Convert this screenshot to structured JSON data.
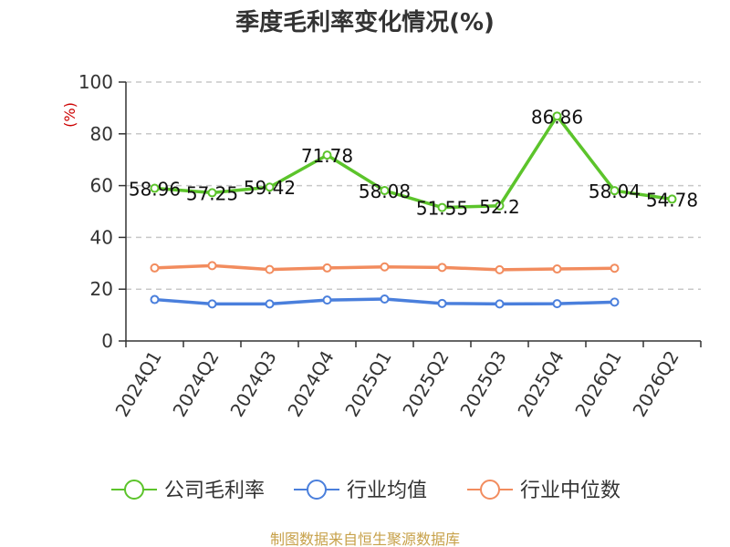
{
  "chart_data": {
    "type": "line",
    "title": "季度毛利率变化情况(%)",
    "ylabel": "(%)",
    "ylim": [
      0,
      100
    ],
    "yticks": [
      0,
      20,
      40,
      60,
      80,
      100
    ],
    "grid": true,
    "legend_position": "bottom",
    "categories": [
      "2024Q1",
      "2024Q2",
      "2024Q3",
      "2024Q4",
      "2025Q1",
      "2025Q2",
      "2025Q3",
      "2025Q4",
      "2026Q1",
      "2026Q2"
    ],
    "series": [
      {
        "name": "公司毛利率",
        "color": "#5cc42b",
        "values": [
          58.96,
          57.25,
          59.42,
          71.78,
          58.08,
          51.55,
          52.2,
          86.86,
          58.04,
          54.78
        ],
        "labels": [
          "58.96",
          "57.25",
          "59.42",
          "71.78",
          "58.08",
          "51.55",
          "52.2",
          "86.86",
          "58.04",
          "54.78"
        ]
      },
      {
        "name": "行业均值",
        "color": "#4a7fdc",
        "values": [
          16.0,
          14.3,
          14.3,
          15.8,
          16.2,
          14.5,
          14.3,
          14.4,
          15.0,
          null
        ]
      },
      {
        "name": "行业中位数",
        "color": "#f28c5e",
        "values": [
          28.2,
          29.1,
          27.6,
          28.2,
          28.6,
          28.4,
          27.5,
          27.8,
          28.1,
          null
        ]
      }
    ]
  },
  "source_text": "制图数据来自恒生聚源数据库"
}
